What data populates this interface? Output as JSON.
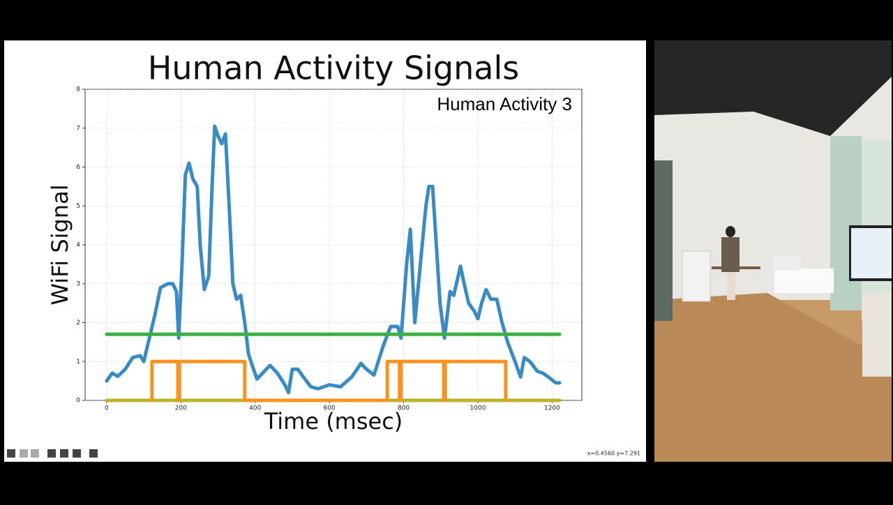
{
  "chart_data": {
    "type": "line",
    "title": "Human Activity Signals",
    "annotation": "Human Activity 3",
    "xlabel": "Time (msec)",
    "ylabel": "WiFi Signal",
    "xlim": [
      -58,
      1280
    ],
    "ylim": [
      0,
      8
    ],
    "xticks": [
      0,
      200,
      400,
      600,
      800,
      1000,
      1200
    ],
    "yticks": [
      0,
      1,
      2,
      3,
      4,
      5,
      6,
      7,
      8
    ],
    "grid": true,
    "series": [
      {
        "color": "#3a8bc4",
        "x": [
          0,
          15,
          30,
          50,
          70,
          90,
          100,
          115,
          130,
          145,
          165,
          178,
          188,
          194,
          203,
          212,
          222,
          232,
          244,
          252,
          263,
          275,
          284,
          291,
          300,
          310,
          320,
          330,
          340,
          350,
          361,
          372,
          382,
          392,
          405,
          420,
          440,
          460,
          480,
          490,
          500,
          515,
          530,
          550,
          570,
          600,
          630,
          660,
          685,
          700,
          720,
          745,
          765,
          784,
          793,
          808,
          818,
          830,
          845,
          860,
          868,
          878,
          888,
          898,
          910,
          925,
          935,
          953,
          963,
          975,
          990,
          1000,
          1010,
          1022,
          1035,
          1051,
          1065,
          1080,
          1100,
          1115,
          1125,
          1140,
          1160,
          1175,
          1190,
          1210,
          1220
        ],
        "values": [
          0.5,
          0.7,
          0.62,
          0.8,
          1.1,
          1.15,
          1.0,
          1.6,
          2.2,
          2.9,
          3.0,
          3.0,
          2.8,
          1.6,
          3.5,
          5.8,
          6.1,
          5.7,
          5.5,
          4.0,
          2.85,
          3.2,
          5.5,
          7.05,
          6.8,
          6.6,
          6.85,
          5.0,
          3.0,
          2.6,
          2.7,
          2.0,
          1.2,
          0.9,
          0.55,
          0.7,
          0.9,
          0.7,
          0.4,
          0.2,
          0.8,
          0.8,
          0.6,
          0.35,
          0.3,
          0.4,
          0.35,
          0.6,
          0.95,
          0.8,
          0.65,
          1.4,
          1.9,
          1.9,
          1.6,
          3.5,
          4.4,
          2.0,
          3.5,
          5.0,
          5.5,
          5.5,
          4.0,
          2.5,
          1.6,
          2.8,
          2.7,
          3.45,
          3.0,
          2.5,
          2.3,
          2.1,
          2.5,
          2.85,
          2.6,
          2.6,
          2.0,
          1.5,
          1.0,
          0.6,
          1.1,
          1.0,
          0.75,
          0.7,
          0.6,
          0.45,
          0.45
        ]
      },
      {
        "color": "#3cb043",
        "x": [
          0,
          1220
        ],
        "values": [
          1.7,
          1.7
        ]
      },
      {
        "color": "#b9b42a",
        "x": [
          0,
          1220
        ],
        "values": [
          0,
          0
        ]
      },
      {
        "color": "#f7931e",
        "x": [
          122,
          122,
          192,
          192,
          196,
          196,
          372,
          372,
          756,
          756,
          789,
          789,
          793,
          793,
          908,
          908,
          912,
          912,
          1075,
          1075
        ],
        "values": [
          0,
          1,
          1,
          0,
          0,
          1,
          1,
          0,
          0,
          1,
          1,
          0,
          0,
          1,
          1,
          0,
          0,
          1,
          1,
          0
        ]
      }
    ]
  },
  "toolbar": {
    "status": "x=0.4560 y=7.291"
  }
}
